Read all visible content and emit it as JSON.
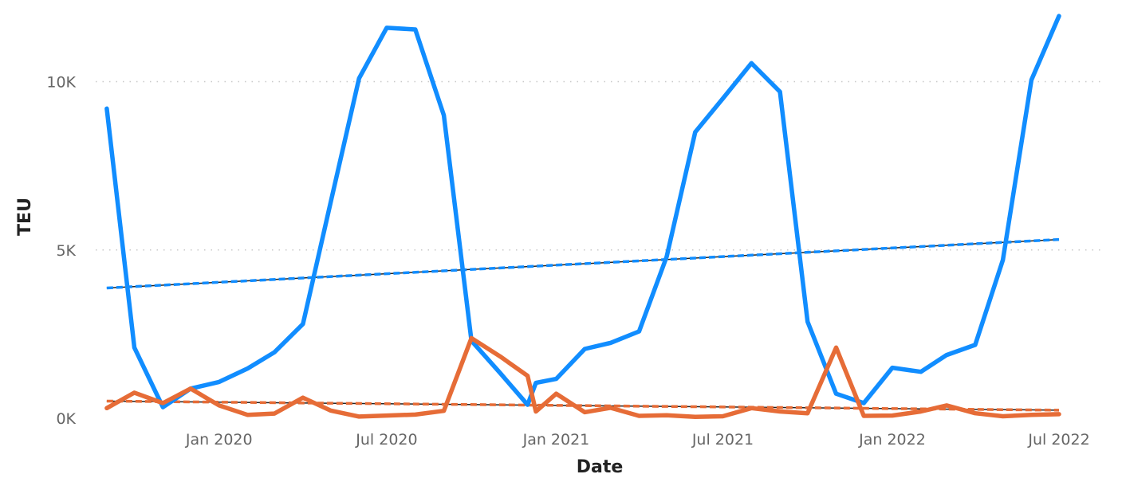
{
  "chart_data": {
    "type": "line",
    "xlabel": "Date",
    "ylabel": "TEU",
    "x_ticks": [
      {
        "date": "2020-01-01",
        "label": "Jan 2020"
      },
      {
        "date": "2020-07-01",
        "label": "Jul 2020"
      },
      {
        "date": "2021-01-01",
        "label": "Jan 2021"
      },
      {
        "date": "2021-07-01",
        "label": "Jul 2021"
      },
      {
        "date": "2022-01-01",
        "label": "Jan 2022"
      },
      {
        "date": "2022-07-01",
        "label": "Jul 2022"
      }
    ],
    "y_ticks": [
      {
        "value": 0,
        "label": "0K"
      },
      {
        "value": 5000,
        "label": "5K"
      },
      {
        "value": 10000,
        "label": "10K"
      }
    ],
    "xlim": [
      "2019-08-20",
      "2022-08-15"
    ],
    "ylim": [
      0,
      12000
    ],
    "grid": "horizontal dotted",
    "series": [
      {
        "color": "#118DFF",
        "points": [
          [
            "2019-09-01",
            9200
          ],
          [
            "2019-10-01",
            2100
          ],
          [
            "2019-11-01",
            330
          ],
          [
            "2019-12-01",
            880
          ],
          [
            "2020-01-01",
            1080
          ],
          [
            "2020-02-01",
            1480
          ],
          [
            "2020-03-01",
            1960
          ],
          [
            "2020-04-01",
            2800
          ],
          [
            "2020-05-01",
            6400
          ],
          [
            "2020-06-01",
            10100
          ],
          [
            "2020-07-01",
            11600
          ],
          [
            "2020-08-01",
            11550
          ],
          [
            "2020-09-01",
            9000
          ],
          [
            "2020-10-01",
            2300
          ],
          [
            "2020-11-01",
            1350
          ],
          [
            "2020-12-01",
            400
          ],
          [
            "2020-12-10",
            1050
          ],
          [
            "2021-01-01",
            1170
          ],
          [
            "2021-02-01",
            2060
          ],
          [
            "2021-03-01",
            2240
          ],
          [
            "2021-04-01",
            2580
          ],
          [
            "2021-05-01",
            4800
          ],
          [
            "2021-06-01",
            8500
          ],
          [
            "2021-07-01",
            9500
          ],
          [
            "2021-08-01",
            10550
          ],
          [
            "2021-09-01",
            9700
          ],
          [
            "2021-10-01",
            2870
          ],
          [
            "2021-11-01",
            730
          ],
          [
            "2021-12-01",
            450
          ],
          [
            "2022-01-01",
            1500
          ],
          [
            "2022-02-01",
            1380
          ],
          [
            "2022-03-01",
            1880
          ],
          [
            "2022-04-01",
            2180
          ],
          [
            "2022-05-01",
            4700
          ],
          [
            "2022-06-01",
            10050
          ],
          [
            "2022-07-01",
            11950
          ]
        ],
        "trend": [
          [
            "2019-09-01",
            3870
          ],
          [
            "2022-07-01",
            5310
          ]
        ]
      },
      {
        "color": "#E66C37",
        "points": [
          [
            "2019-09-01",
            300
          ],
          [
            "2019-10-01",
            760
          ],
          [
            "2019-11-01",
            450
          ],
          [
            "2019-12-01",
            880
          ],
          [
            "2020-01-01",
            380
          ],
          [
            "2020-02-01",
            100
          ],
          [
            "2020-03-01",
            140
          ],
          [
            "2020-04-01",
            610
          ],
          [
            "2020-05-01",
            230
          ],
          [
            "2020-06-01",
            50
          ],
          [
            "2020-07-01",
            80
          ],
          [
            "2020-08-01",
            110
          ],
          [
            "2020-09-01",
            220
          ],
          [
            "2020-10-01",
            2380
          ],
          [
            "2020-11-01",
            1840
          ],
          [
            "2020-12-01",
            1260
          ],
          [
            "2020-12-10",
            200
          ],
          [
            "2021-01-01",
            730
          ],
          [
            "2021-02-01",
            180
          ],
          [
            "2021-03-01",
            310
          ],
          [
            "2021-04-01",
            70
          ],
          [
            "2021-05-01",
            90
          ],
          [
            "2021-06-01",
            40
          ],
          [
            "2021-07-01",
            60
          ],
          [
            "2021-08-01",
            300
          ],
          [
            "2021-09-01",
            200
          ],
          [
            "2021-10-01",
            150
          ],
          [
            "2021-11-01",
            2100
          ],
          [
            "2021-12-01",
            70
          ],
          [
            "2022-01-01",
            80
          ],
          [
            "2022-02-01",
            200
          ],
          [
            "2022-03-01",
            380
          ],
          [
            "2022-04-01",
            150
          ],
          [
            "2022-05-01",
            60
          ],
          [
            "2022-06-01",
            100
          ],
          [
            "2022-07-01",
            120
          ]
        ],
        "trend": [
          [
            "2019-09-01",
            510
          ],
          [
            "2022-07-01",
            240
          ]
        ]
      }
    ]
  }
}
